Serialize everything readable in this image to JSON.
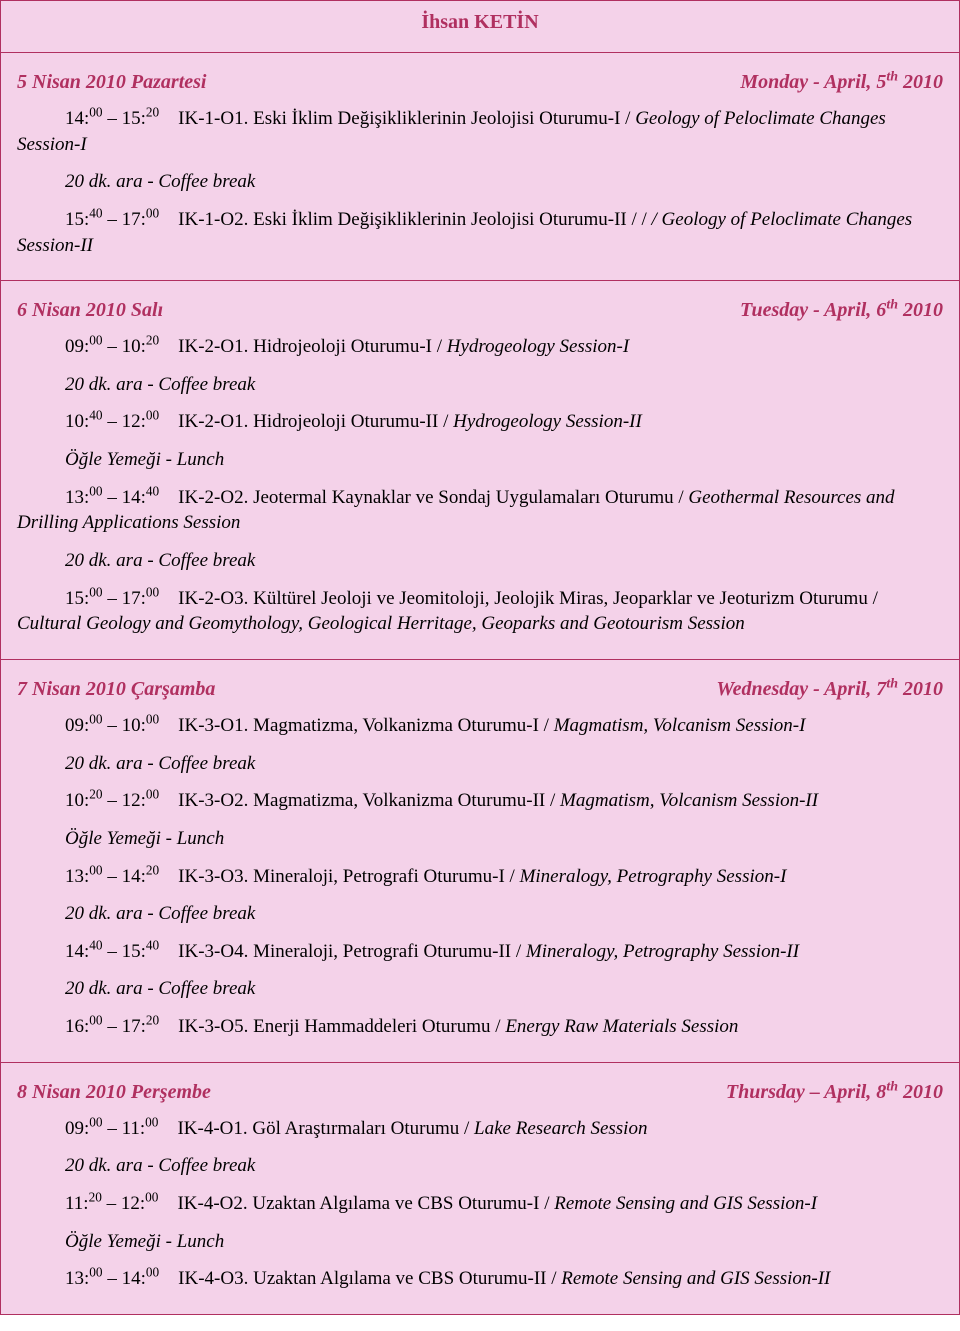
{
  "colors": {
    "accent": "#b03060",
    "background": "#f4d2e9",
    "page_bg": "#ffffff",
    "text": "#000000"
  },
  "typography": {
    "font_family": "Times New Roman",
    "base_size_pt": 14,
    "title_size_pt": 15,
    "italic_for_english": true
  },
  "hall_title": "İhsan KETİN",
  "break_text": "20 dk. ara - Coffee  break",
  "lunch_text": "Öğle Yemeği - Lunch",
  "days": [
    {
      "left": "5 Nisan 2010 Pazartesi",
      "right_pre": "Monday - April, 5",
      "right_sup": "th",
      "right_post": " 2010",
      "items": [
        {
          "kind": "session",
          "t1h": "14:",
          "t1s": "00",
          "t2h": "15:",
          "t2s": "20",
          "code": "IK-1-O1.",
          "tr": "Eski İklim Değişikliklerinin Jeolojisi  Oturumu-I",
          "en": "Geology of Peloclimate Changes Session-I",
          "wrap_tail": true
        },
        {
          "kind": "break"
        },
        {
          "kind": "session",
          "t1h": "15:",
          "t1s": "40",
          "t2h": "17:",
          "t2s": "00",
          "code": "IK-1-O2.",
          "tr": "Eski İklim Değişikliklerinin Jeolojisi  Oturumu-II /",
          "en": "/ Geology of Peloclimate Changes Session-II",
          "wrap_tail": true
        }
      ]
    },
    {
      "left": "6 Nisan 2010 Salı",
      "right_pre": "Tuesday - April, 6",
      "right_sup": "th",
      "right_post": " 2010",
      "items": [
        {
          "kind": "session",
          "t1h": "09:",
          "t1s": "00",
          "t2h": "10:",
          "t2s": "20",
          "code": "IK-2-O1.",
          "tr": "Hidrojeoloji Oturumu-I",
          "en": "Hydrogeology Session-I"
        },
        {
          "kind": "break"
        },
        {
          "kind": "session",
          "t1h": "10:",
          "t1s": "40",
          "t2h": "12:",
          "t2s": "00",
          "code": "IK-2-O1.",
          "tr": "Hidrojeoloji Oturumu-II",
          "en": "Hydrogeology Session-II"
        },
        {
          "kind": "lunch"
        },
        {
          "kind": "session",
          "t1h": "13:",
          "t1s": "00",
          "t2h": "14:",
          "t2s": "40",
          "code": "IK-2-O2.",
          "tr": "Jeotermal Kaynaklar ve Sondaj Uygulamaları Oturumu",
          "en": "Geothermal Resources and Drilling Applications Session",
          "wrap_tail": true
        },
        {
          "kind": "break"
        },
        {
          "kind": "session",
          "t1h": "15:",
          "t1s": "00",
          "t2h": "17:",
          "t2s": "00",
          "code": "IK-2-O3.",
          "tr": "Kültürel Jeoloji ve Jeomitoloji, Jeolojik Miras, Jeoparklar ve Jeoturizm Oturumu",
          "en": "Cultural Geology and Geomythology, Geological Herritage, Geoparks and Geotourism Session",
          "wrap_tail": true
        }
      ]
    },
    {
      "left": "7 Nisan 2010 Çarşamba",
      "right_pre": "Wednesday - April, 7",
      "right_sup": "th",
      "right_post": " 2010",
      "items": [
        {
          "kind": "session",
          "t1h": "09:",
          "t1s": "00",
          "t2h": "10:",
          "t2s": "00",
          "code": "IK-3-O1.",
          "tr": "Magmatizma, Volkanizma Oturumu-I",
          "en": "Magmatism, Volcanism Session-I"
        },
        {
          "kind": "break"
        },
        {
          "kind": "session",
          "t1h": "10:",
          "t1s": "20",
          "t2h": "12:",
          "t2s": "00",
          "code": "IK-3-O2.",
          "tr": "Magmatizma, Volkanizma Oturumu-II",
          "en": "Magmatism, Volcanism Session-II"
        },
        {
          "kind": "lunch"
        },
        {
          "kind": "session",
          "t1h": "13:",
          "t1s": "00",
          "t2h": "14:",
          "t2s": "20",
          "code": "IK-3-O3.",
          "tr": "Mineraloji, Petrografi Oturumu-I",
          "en": "Mineralogy, Petrography Session-I"
        },
        {
          "kind": "break"
        },
        {
          "kind": "session",
          "t1h": "14:",
          "t1s": "40",
          "t2h": "15:",
          "t2s": "40",
          "code": "IK-3-O4.",
          "tr": "Mineraloji, Petrografi Oturumu-II",
          "en": "Mineralogy, Petrography Session-II"
        },
        {
          "kind": "break"
        },
        {
          "kind": "session",
          "t1h": "16:",
          "t1s": "00",
          "t2h": "17:",
          "t2s": "20",
          "code": "IK-3-O5.",
          "tr": "Enerji Hammaddeleri Oturumu",
          "en": "Energy Raw Materials Session"
        }
      ]
    },
    {
      "left": "8 Nisan 2010 Perşembe",
      "right_pre": "Thursday – April, 8",
      "right_sup": "th",
      "right_post": " 2010",
      "items": [
        {
          "kind": "session",
          "t1h": "09:",
          "t1s": "00",
          "t2h": "11:",
          "t2s": "00",
          "code": "IK-4-O1.",
          "tr": "Göl Araştırmaları Oturumu",
          "en": "Lake Research Session"
        },
        {
          "kind": "break"
        },
        {
          "kind": "session",
          "t1h": "11:",
          "t1s": "20",
          "t2h": "12:",
          "t2s": "00",
          "code": "IK-4-O2.",
          "tr": "Uzaktan Algılama ve CBS Oturumu-I",
          "en": "Remote Sensing and GIS Session-I"
        },
        {
          "kind": "lunch"
        },
        {
          "kind": "session",
          "t1h": "13:",
          "t1s": "00",
          "t2h": "14:",
          "t2s": "00",
          "code": "IK-4-O3.",
          "tr": "Uzaktan Algılama ve CBS Oturumu-II",
          "en": "Remote Sensing and GIS Session-II"
        }
      ]
    }
  ]
}
